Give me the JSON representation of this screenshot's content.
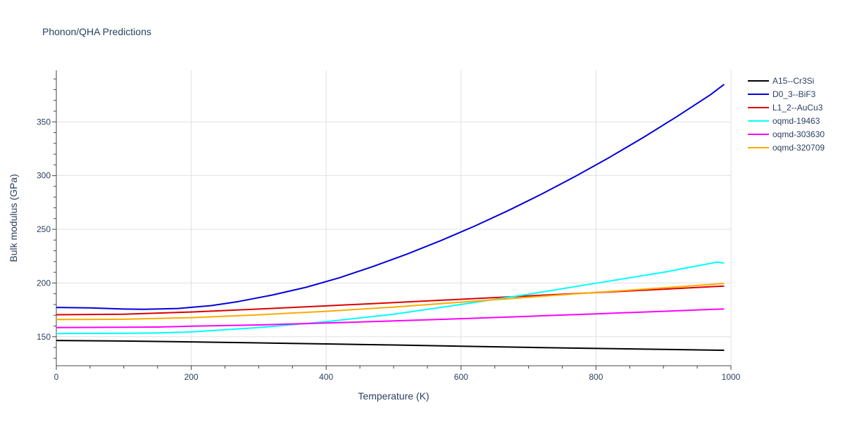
{
  "chart_data": {
    "type": "line",
    "title": "Phonon/QHA Predictions",
    "xlabel": "Temperature (K)",
    "ylabel": "Bulk modulus (GPa)",
    "xlim": [
      0,
      1000
    ],
    "ylim": [
      123,
      398
    ],
    "xticks": [
      0,
      200,
      400,
      600,
      800,
      1000
    ],
    "yticks": [
      150,
      200,
      250,
      300,
      350
    ],
    "grid": true,
    "legend_position": "right",
    "series": [
      {
        "name": "A15--Cr3Si",
        "color": "#000000",
        "x": [
          0,
          100,
          200,
          300,
          400,
          500,
          600,
          700,
          800,
          900,
          990
        ],
        "y": [
          146.5,
          146.0,
          145.2,
          144.3,
          143.3,
          142.3,
          141.2,
          140.1,
          139.1,
          138.2,
          137.4
        ]
      },
      {
        "name": "D0_3--BiF3",
        "color": "#0000dd",
        "x": [
          0,
          50,
          100,
          130,
          180,
          230,
          270,
          320,
          370,
          420,
          470,
          520,
          570,
          620,
          670,
          720,
          770,
          820,
          870,
          920,
          970,
          990
        ],
        "y": [
          177.3,
          176.8,
          175.8,
          175.5,
          176.3,
          179.0,
          182.8,
          188.8,
          196.0,
          205.0,
          215.5,
          227.0,
          239.5,
          253.0,
          267.5,
          283.0,
          299.5,
          317.0,
          335.5,
          355.0,
          375.5,
          385.0
        ]
      },
      {
        "name": "L1_2--AuCu3",
        "color": "#dd0000",
        "x": [
          0,
          100,
          200,
          300,
          400,
          500,
          600,
          700,
          800,
          900,
          990
        ],
        "y": [
          170.5,
          171.0,
          173.0,
          175.8,
          178.7,
          181.8,
          184.9,
          188.0,
          191.1,
          194.2,
          197.2
        ]
      },
      {
        "name": "oqmd-19463",
        "color": "#00ffff",
        "x": [
          0,
          100,
          150,
          200,
          300,
          400,
          500,
          600,
          700,
          800,
          900,
          980,
          990
        ],
        "y": [
          153.0,
          153.2,
          153.5,
          154.5,
          158.5,
          164.0,
          171.0,
          180.0,
          189.5,
          199.8,
          210.0,
          219.5,
          218.5
        ]
      },
      {
        "name": "oqmd-303630",
        "color": "#ff00ff",
        "x": [
          0,
          100,
          150,
          200,
          300,
          400,
          500,
          600,
          700,
          800,
          900,
          990
        ],
        "y": [
          158.5,
          158.8,
          159.0,
          159.8,
          161.0,
          162.8,
          164.7,
          166.8,
          169.0,
          171.3,
          173.7,
          175.9
        ]
      },
      {
        "name": "oqmd-320709",
        "color": "#ffaa00",
        "x": [
          0,
          100,
          200,
          300,
          400,
          500,
          600,
          700,
          800,
          900,
          990
        ],
        "y": [
          166.0,
          166.3,
          167.8,
          170.4,
          173.7,
          177.6,
          182.2,
          186.8,
          191.2,
          195.5,
          199.6
        ]
      }
    ]
  }
}
